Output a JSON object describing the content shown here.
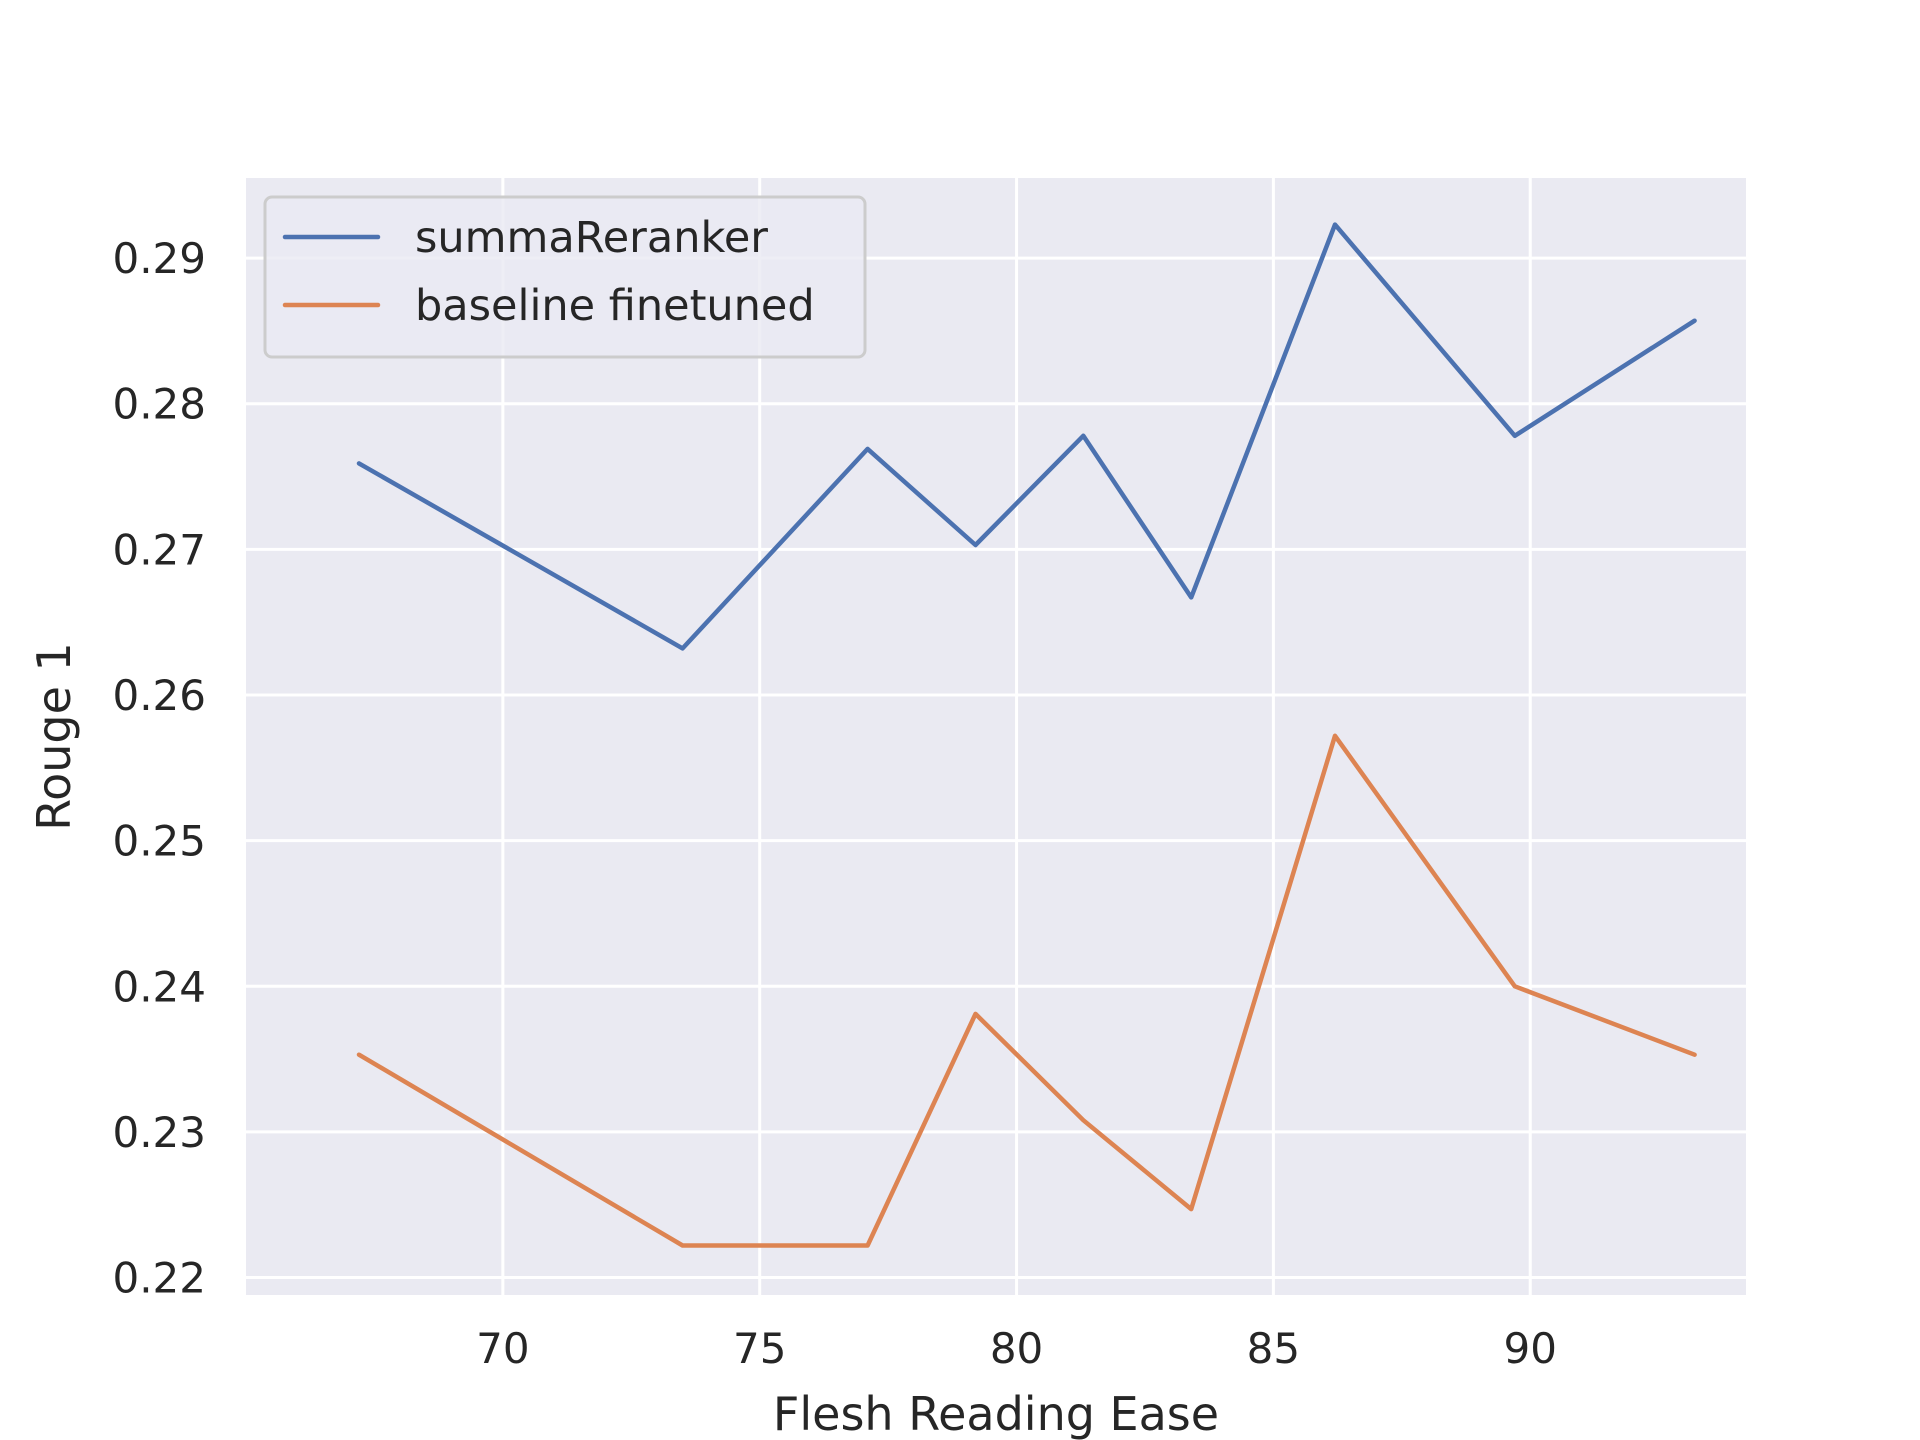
{
  "chart_data": {
    "type": "line",
    "xlabel": "Flesh Reading Ease",
    "ylabel": "Rouge 1",
    "xlim": [
      65.0,
      94.2
    ],
    "ylim": [
      0.2188,
      0.2955
    ],
    "xticks": [
      70,
      75,
      80,
      85,
      90
    ],
    "xtick_labels": [
      "70",
      "75",
      "80",
      "85",
      "90"
    ],
    "yticks": [
      0.22,
      0.23,
      0.24,
      0.25,
      0.26,
      0.27,
      0.28,
      0.29
    ],
    "ytick_labels": [
      "0.22",
      "0.23",
      "0.24",
      "0.25",
      "0.26",
      "0.27",
      "0.28",
      "0.29"
    ],
    "grid": true,
    "legend_position": "upper-left",
    "x": [
      67.2,
      73.5,
      77.1,
      79.2,
      81.3,
      83.4,
      86.2,
      89.7,
      93.2
    ],
    "series": [
      {
        "name": "summaReranker",
        "color": "#4c72b0",
        "values": [
          0.2759,
          0.2632,
          0.2769,
          0.2703,
          0.2778,
          0.2667,
          0.2923,
          0.2778,
          0.2857
        ]
      },
      {
        "name": "baseline finetuned",
        "color": "#dd8452",
        "values": [
          0.2353,
          0.2222,
          0.2222,
          0.2381,
          0.2308,
          0.2247,
          0.2572,
          0.24,
          0.2353
        ]
      }
    ],
    "background_color": "#eaeaf2",
    "grid_color": "#ffffff"
  }
}
